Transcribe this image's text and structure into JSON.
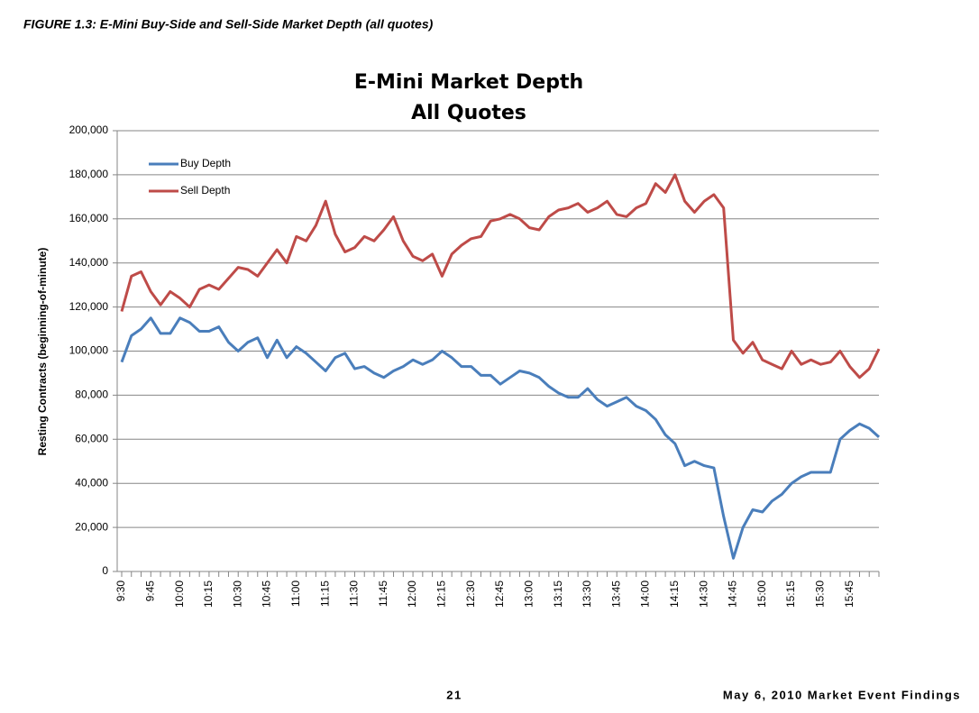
{
  "figure_caption": "FIGURE 1.3:  E-Mini Buy-Side and Sell-Side Market Depth (all quotes)",
  "footer": {
    "page": "21",
    "text": "May 6, 2010 Market Event Findings"
  },
  "chart_data": {
    "type": "line",
    "title": "E-Mini Market Depth",
    "subtitle": "All Quotes",
    "y_label": "Resting Contracts (beginning-of-minute)",
    "categories": [
      "9:30",
      null,
      null,
      "9:45",
      null,
      null,
      "10:00",
      null,
      null,
      "10:15",
      null,
      null,
      "10:30",
      null,
      null,
      "10:45",
      null,
      null,
      "11:00",
      null,
      null,
      "11:15",
      null,
      null,
      "11:30",
      null,
      null,
      "11:45",
      null,
      null,
      "12:00",
      null,
      null,
      "12:15",
      null,
      null,
      "12:30",
      null,
      null,
      "12:45",
      null,
      null,
      "13:00",
      null,
      null,
      "13:15",
      null,
      null,
      "13:30",
      null,
      null,
      "13:45",
      null,
      null,
      "14:00",
      null,
      null,
      "14:15",
      null,
      null,
      "14:30",
      null,
      null,
      "14:45",
      null,
      null,
      "15:00",
      null,
      null,
      "15:15",
      null,
      null,
      "15:30",
      null,
      null,
      "15:45",
      null,
      null,
      null
    ],
    "series": [
      {
        "name": "Buy Depth",
        "color": "#4a7ebb",
        "values": [
          95000,
          107000,
          110000,
          115000,
          108000,
          108000,
          115000,
          113000,
          109000,
          109000,
          111000,
          104000,
          100000,
          104000,
          106000,
          97000,
          105000,
          97000,
          102000,
          99000,
          95000,
          91000,
          97000,
          99000,
          92000,
          93000,
          90000,
          88000,
          91000,
          93000,
          96000,
          94000,
          96000,
          100000,
          97000,
          93000,
          93000,
          89000,
          89000,
          85000,
          88000,
          91000,
          90000,
          88000,
          84000,
          81000,
          79000,
          79000,
          83000,
          78000,
          75000,
          77000,
          79000,
          75000,
          73000,
          69000,
          62000,
          58000,
          48000,
          50000,
          48000,
          47000,
          25000,
          6000,
          20000,
          28000,
          27000,
          32000,
          35000,
          40000,
          43000,
          45000,
          45000,
          45000,
          60000,
          64000,
          67000,
          65000,
          61000
        ]
      },
      {
        "name": "Sell Depth",
        "color": "#be4b48",
        "values": [
          118000,
          134000,
          136000,
          127000,
          121000,
          127000,
          124000,
          120000,
          128000,
          130000,
          128000,
          133000,
          138000,
          137000,
          134000,
          140000,
          146000,
          140000,
          152000,
          150000,
          157000,
          168000,
          153000,
          145000,
          147000,
          152000,
          150000,
          155000,
          161000,
          150000,
          143000,
          141000,
          144000,
          134000,
          144000,
          148000,
          151000,
          152000,
          159000,
          160000,
          162000,
          160000,
          156000,
          155000,
          161000,
          164000,
          165000,
          167000,
          163000,
          165000,
          168000,
          162000,
          161000,
          165000,
          167000,
          176000,
          172000,
          180000,
          168000,
          163000,
          168000,
          171000,
          165000,
          105000,
          99000,
          104000,
          96000,
          94000,
          92000,
          100000,
          94000,
          96000,
          94000,
          95000,
          100000,
          93000,
          88000,
          92000,
          101000
        ]
      }
    ],
    "ylim": [
      0,
      200000
    ],
    "yticks": [
      0,
      {
        "value": 20000,
        "label": "20,000"
      },
      {
        "value": 40000,
        "label": "40,000"
      },
      {
        "value": 60000,
        "label": "60,000"
      },
      {
        "value": 80000,
        "label": "80,000"
      },
      {
        "value": 100000,
        "label": "100,000"
      },
      {
        "value": 120000,
        "label": "120,000"
      },
      {
        "value": 140000,
        "label": "140,000"
      },
      {
        "value": 160000,
        "label": "160,000"
      },
      {
        "value": 180000,
        "label": "180,000"
      },
      {
        "value": 200000,
        "label": "200,000"
      }
    ],
    "grid": true,
    "legend": "upper left"
  }
}
